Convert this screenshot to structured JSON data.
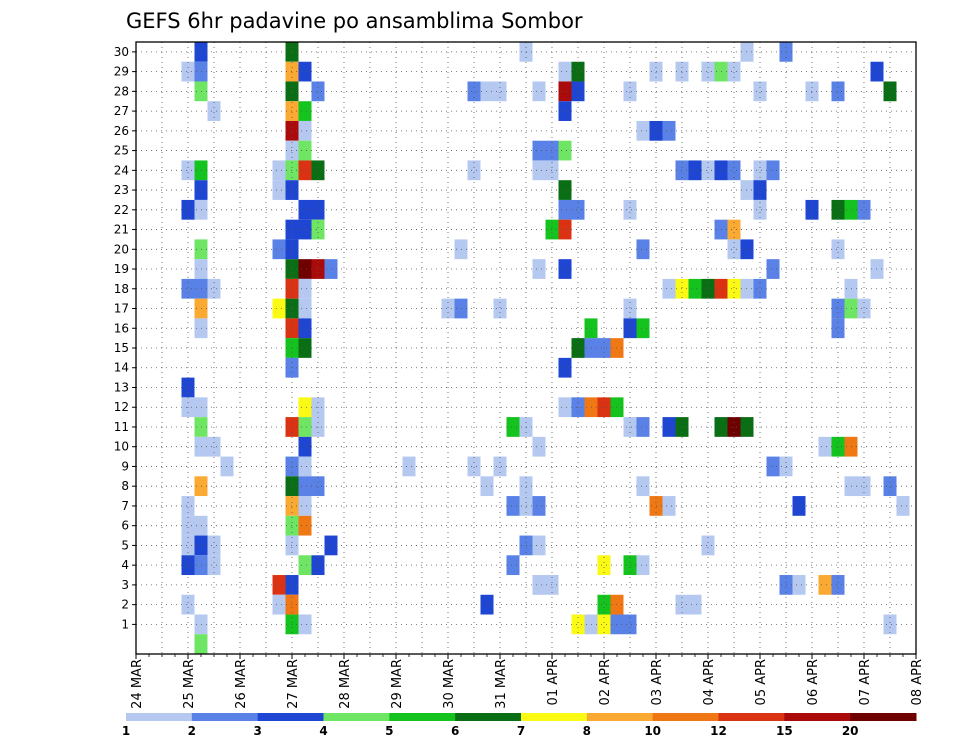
{
  "chart_data": {
    "type": "heatmap",
    "title": "GEFS 6hr padavine po ansamblima Sombor",
    "y_labels": [
      "1",
      "2",
      "3",
      "4",
      "5",
      "6",
      "7",
      "8",
      "9",
      "10",
      "11",
      "12",
      "13",
      "14",
      "15",
      "16",
      "17",
      "18",
      "19",
      "20",
      "21",
      "22",
      "23",
      "24",
      "25",
      "26",
      "27",
      "28",
      "29",
      "30"
    ],
    "x_labels": [
      "24 MAR",
      "25 MAR",
      "26 MAR",
      "27 MAR",
      "28 MAR",
      "29 MAR",
      "30 MAR",
      "31 MAR",
      "01 APR",
      "02 APR",
      "03 APR",
      "04 APR",
      "05 APR",
      "06 APR",
      "07 APR",
      "08 APR"
    ],
    "x_range_hours": [
      0,
      360
    ],
    "step_hours": 6,
    "grid": true,
    "legend_placement": "bottom",
    "colorbar": {
      "labels": [
        "1",
        "2",
        "3",
        "4",
        "5",
        "6",
        "7",
        "8",
        "10",
        "12",
        "15",
        "20"
      ],
      "colors": [
        "#b4c8f0",
        "#5a82e6",
        "#1e46d2",
        "#6ee664",
        "#14c31e",
        "#0a6e14",
        "#fafa14",
        "#faaa32",
        "#f07814",
        "#dc3214",
        "#aa0a0a",
        "#6e0000"
      ]
    },
    "cells": [
      [
        30,
        30,
        2
      ],
      [
        30,
        72,
        5
      ],
      [
        30,
        180,
        0
      ],
      [
        30,
        282,
        0
      ],
      [
        30,
        300,
        1
      ],
      [
        29,
        24,
        0
      ],
      [
        29,
        30,
        1
      ],
      [
        29,
        72,
        7
      ],
      [
        29,
        78,
        2
      ],
      [
        29,
        198,
        0
      ],
      [
        29,
        204,
        5
      ],
      [
        29,
        240,
        0
      ],
      [
        29,
        252,
        0
      ],
      [
        29,
        264,
        0
      ],
      [
        29,
        270,
        3
      ],
      [
        29,
        276,
        0
      ],
      [
        29,
        342,
        2
      ],
      [
        28,
        30,
        3
      ],
      [
        28,
        72,
        5
      ],
      [
        28,
        84,
        1
      ],
      [
        28,
        156,
        1
      ],
      [
        28,
        162,
        0
      ],
      [
        28,
        168,
        0
      ],
      [
        28,
        186,
        0
      ],
      [
        28,
        198,
        10
      ],
      [
        28,
        204,
        2
      ],
      [
        28,
        228,
        0
      ],
      [
        28,
        288,
        0
      ],
      [
        28,
        312,
        0
      ],
      [
        28,
        324,
        1
      ],
      [
        28,
        348,
        5
      ],
      [
        27,
        36,
        0
      ],
      [
        27,
        72,
        7
      ],
      [
        27,
        78,
        4
      ],
      [
        27,
        198,
        2
      ],
      [
        26,
        72,
        10
      ],
      [
        26,
        78,
        0
      ],
      [
        26,
        234,
        0
      ],
      [
        26,
        240,
        2
      ],
      [
        26,
        246,
        1
      ],
      [
        25,
        72,
        0
      ],
      [
        25,
        78,
        3
      ],
      [
        25,
        186,
        1
      ],
      [
        25,
        192,
        1
      ],
      [
        25,
        198,
        3
      ],
      [
        24,
        24,
        0
      ],
      [
        24,
        30,
        4
      ],
      [
        24,
        66,
        0
      ],
      [
        24,
        72,
        3
      ],
      [
        24,
        78,
        9
      ],
      [
        24,
        84,
        5
      ],
      [
        24,
        156,
        0
      ],
      [
        24,
        186,
        0
      ],
      [
        24,
        192,
        0
      ],
      [
        24,
        252,
        1
      ],
      [
        24,
        258,
        2
      ],
      [
        24,
        264,
        0
      ],
      [
        24,
        270,
        2
      ],
      [
        24,
        276,
        1
      ],
      [
        24,
        288,
        0
      ],
      [
        24,
        294,
        1
      ],
      [
        23,
        30,
        2
      ],
      [
        23,
        66,
        0
      ],
      [
        23,
        72,
        2
      ],
      [
        23,
        198,
        5
      ],
      [
        23,
        282,
        0
      ],
      [
        23,
        288,
        2
      ],
      [
        22,
        24,
        2
      ],
      [
        22,
        30,
        0
      ],
      [
        22,
        78,
        2
      ],
      [
        22,
        84,
        2
      ],
      [
        22,
        198,
        1
      ],
      [
        22,
        204,
        1
      ],
      [
        22,
        228,
        0
      ],
      [
        22,
        288,
        0
      ],
      [
        22,
        312,
        2
      ],
      [
        22,
        324,
        5
      ],
      [
        22,
        330,
        4
      ],
      [
        22,
        336,
        1
      ],
      [
        21,
        72,
        2
      ],
      [
        21,
        78,
        2
      ],
      [
        21,
        84,
        3
      ],
      [
        21,
        192,
        4
      ],
      [
        21,
        198,
        9
      ],
      [
        21,
        270,
        1
      ],
      [
        21,
        276,
        7
      ],
      [
        20,
        30,
        3
      ],
      [
        20,
        66,
        1
      ],
      [
        20,
        72,
        2
      ],
      [
        20,
        150,
        0
      ],
      [
        20,
        234,
        1
      ],
      [
        20,
        276,
        0
      ],
      [
        20,
        282,
        2
      ],
      [
        20,
        324,
        0
      ],
      [
        19,
        30,
        0
      ],
      [
        19,
        72,
        5
      ],
      [
        19,
        78,
        11
      ],
      [
        19,
        84,
        10
      ],
      [
        19,
        90,
        1
      ],
      [
        19,
        186,
        0
      ],
      [
        19,
        198,
        2
      ],
      [
        19,
        294,
        1
      ],
      [
        19,
        342,
        0
      ],
      [
        18,
        24,
        1
      ],
      [
        18,
        30,
        1
      ],
      [
        18,
        36,
        0
      ],
      [
        18,
        72,
        9
      ],
      [
        18,
        78,
        0
      ],
      [
        18,
        246,
        0
      ],
      [
        18,
        252,
        6
      ],
      [
        18,
        258,
        4
      ],
      [
        18,
        264,
        5
      ],
      [
        18,
        270,
        9
      ],
      [
        18,
        276,
        6
      ],
      [
        18,
        282,
        0
      ],
      [
        18,
        288,
        1
      ],
      [
        18,
        330,
        0
      ],
      [
        17,
        30,
        7
      ],
      [
        17,
        66,
        6
      ],
      [
        17,
        72,
        5
      ],
      [
        17,
        78,
        0
      ],
      [
        17,
        144,
        0
      ],
      [
        17,
        150,
        1
      ],
      [
        17,
        168,
        0
      ],
      [
        17,
        228,
        0
      ],
      [
        17,
        324,
        1
      ],
      [
        17,
        330,
        3
      ],
      [
        17,
        336,
        0
      ],
      [
        16,
        30,
        0
      ],
      [
        16,
        72,
        9
      ],
      [
        16,
        78,
        2
      ],
      [
        16,
        210,
        4
      ],
      [
        16,
        228,
        2
      ],
      [
        16,
        234,
        4
      ],
      [
        16,
        324,
        1
      ],
      [
        15,
        72,
        4
      ],
      [
        15,
        78,
        5
      ],
      [
        15,
        204,
        5
      ],
      [
        15,
        210,
        1
      ],
      [
        15,
        216,
        1
      ],
      [
        15,
        222,
        8
      ],
      [
        14,
        72,
        1
      ],
      [
        14,
        198,
        2
      ],
      [
        13,
        24,
        2
      ],
      [
        12,
        24,
        0
      ],
      [
        12,
        30,
        0
      ],
      [
        12,
        78,
        6
      ],
      [
        12,
        84,
        0
      ],
      [
        12,
        198,
        0
      ],
      [
        12,
        204,
        1
      ],
      [
        12,
        210,
        8
      ],
      [
        12,
        216,
        9
      ],
      [
        12,
        222,
        4
      ],
      [
        11,
        30,
        3
      ],
      [
        11,
        72,
        9
      ],
      [
        11,
        78,
        3
      ],
      [
        11,
        84,
        0
      ],
      [
        11,
        174,
        4
      ],
      [
        11,
        180,
        0
      ],
      [
        11,
        228,
        0
      ],
      [
        11,
        234,
        1
      ],
      [
        11,
        246,
        2
      ],
      [
        11,
        252,
        5
      ],
      [
        11,
        270,
        5
      ],
      [
        11,
        276,
        11
      ],
      [
        11,
        282,
        5
      ],
      [
        10,
        30,
        0
      ],
      [
        10,
        36,
        0
      ],
      [
        10,
        78,
        2
      ],
      [
        10,
        186,
        0
      ],
      [
        10,
        318,
        0
      ],
      [
        10,
        324,
        4
      ],
      [
        10,
        330,
        8
      ],
      [
        9,
        42,
        0
      ],
      [
        9,
        72,
        1
      ],
      [
        9,
        78,
        0
      ],
      [
        9,
        126,
        0
      ],
      [
        9,
        156,
        0
      ],
      [
        9,
        168,
        0
      ],
      [
        9,
        294,
        1
      ],
      [
        9,
        300,
        0
      ],
      [
        8,
        30,
        7
      ],
      [
        8,
        72,
        5
      ],
      [
        8,
        78,
        1
      ],
      [
        8,
        84,
        1
      ],
      [
        8,
        162,
        0
      ],
      [
        8,
        180,
        0
      ],
      [
        8,
        234,
        0
      ],
      [
        8,
        330,
        0
      ],
      [
        8,
        336,
        0
      ],
      [
        8,
        348,
        1
      ],
      [
        7,
        24,
        0
      ],
      [
        7,
        72,
        7
      ],
      [
        7,
        78,
        0
      ],
      [
        7,
        174,
        1
      ],
      [
        7,
        180,
        0
      ],
      [
        7,
        186,
        1
      ],
      [
        7,
        240,
        8
      ],
      [
        7,
        246,
        0
      ],
      [
        7,
        306,
        2
      ],
      [
        7,
        354,
        0
      ],
      [
        6,
        24,
        0
      ],
      [
        6,
        30,
        0
      ],
      [
        6,
        72,
        3
      ],
      [
        6,
        78,
        8
      ],
      [
        5,
        24,
        0
      ],
      [
        5,
        30,
        2
      ],
      [
        5,
        36,
        0
      ],
      [
        5,
        72,
        0
      ],
      [
        5,
        90,
        2
      ],
      [
        5,
        180,
        1
      ],
      [
        5,
        186,
        0
      ],
      [
        5,
        264,
        0
      ],
      [
        4,
        24,
        2
      ],
      [
        4,
        30,
        1
      ],
      [
        4,
        36,
        0
      ],
      [
        4,
        78,
        3
      ],
      [
        4,
        84,
        2
      ],
      [
        4,
        174,
        1
      ],
      [
        4,
        216,
        6
      ],
      [
        4,
        228,
        4
      ],
      [
        4,
        234,
        0
      ],
      [
        3,
        66,
        9
      ],
      [
        3,
        72,
        2
      ],
      [
        3,
        186,
        0
      ],
      [
        3,
        192,
        0
      ],
      [
        3,
        300,
        1
      ],
      [
        3,
        306,
        0
      ],
      [
        3,
        318,
        7
      ],
      [
        3,
        324,
        1
      ],
      [
        2,
        24,
        0
      ],
      [
        2,
        66,
        0
      ],
      [
        2,
        72,
        8
      ],
      [
        2,
        162,
        2
      ],
      [
        2,
        216,
        4
      ],
      [
        2,
        222,
        8
      ],
      [
        2,
        252,
        0
      ],
      [
        2,
        258,
        0
      ],
      [
        1,
        30,
        0
      ],
      [
        1,
        72,
        4
      ],
      [
        1,
        78,
        0
      ],
      [
        1,
        204,
        6
      ],
      [
        1,
        210,
        0
      ],
      [
        1,
        216,
        6
      ],
      [
        1,
        222,
        1
      ],
      [
        1,
        228,
        1
      ],
      [
        1,
        348,
        0
      ],
      [
        0,
        30,
        3
      ]
    ]
  }
}
